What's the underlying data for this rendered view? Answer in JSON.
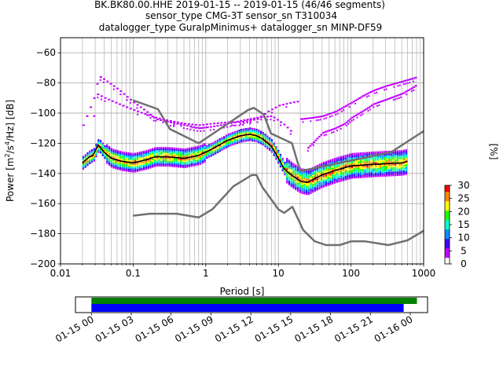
{
  "chart_data": [
    {
      "type": "heatmap",
      "title_lines": [
        "BK.BK80.00.HHE   2019-01-15 -- 2019-01-15  (46/46 segments)",
        "sensor_type CMG-3T sensor_sn T310034",
        "datalogger_type GuralpMinimus+ datalogger_sn MINP-DF59"
      ],
      "xlabel": "Period [s]",
      "ylabel_parts": {
        "prefix": "Power [m",
        "sup1": "2",
        "mid": "/s",
        "sup2": "4",
        "suffix": "/Hz] [dB]"
      },
      "x_scale": "log",
      "xlim": [
        0.01,
        1000
      ],
      "ylim": [
        -200,
        -50
      ],
      "x_ticks": [
        {
          "value": 0.01,
          "label": "0.01"
        },
        {
          "value": 0.1,
          "label": "0.1"
        },
        {
          "value": 1,
          "label": "1"
        },
        {
          "value": 10,
          "label": "10"
        },
        {
          "value": 100,
          "label": "100"
        },
        {
          "value": 1000,
          "label": "1000"
        }
      ],
      "y_ticks": [
        {
          "value": -60,
          "label": "−60"
        },
        {
          "value": -80,
          "label": "−80"
        },
        {
          "value": -100,
          "label": "−100"
        },
        {
          "value": -120,
          "label": "−120"
        },
        {
          "value": -140,
          "label": "−140"
        },
        {
          "value": -160,
          "label": "−160"
        },
        {
          "value": -180,
          "label": "−180"
        },
        {
          "value": -200,
          "label": "−200"
        }
      ],
      "grid": true,
      "noise_model_color": "#707070",
      "new_high_noise_model": {
        "period": [
          0.1,
          0.22,
          0.32,
          0.8,
          3.8,
          4.6,
          6.3,
          7.9,
          15.4,
          20,
          354.8,
          1000
        ],
        "power": [
          -91.5,
          -97.4,
          -110.5,
          -120.0,
          -98.0,
          -96.5,
          -101.0,
          -113.5,
          -120.0,
          -138.5,
          -126.0,
          -112.0
        ]
      },
      "new_low_noise_model": {
        "period": [
          0.1,
          0.17,
          0.4,
          0.8,
          1.24,
          2.4,
          4.3,
          5.0,
          6.0,
          10.0,
          12.0,
          15.6,
          21.9,
          31.6,
          45,
          70,
          101,
          154,
          328,
          600,
          1000
        ],
        "power": [
          -168.0,
          -166.7,
          -166.7,
          -169.2,
          -163.7,
          -148.6,
          -141.1,
          -141.1,
          -149.0,
          -163.8,
          -166.2,
          -162.1,
          -177.5,
          -185.0,
          -187.5,
          -187.5,
          -185.0,
          -185.0,
          -187.5,
          -184.4,
          -178.0
        ]
      },
      "mode_line": {
        "color": "#000000",
        "period": [
          0.02,
          0.025,
          0.028,
          0.033,
          0.04,
          0.05,
          0.07,
          0.1,
          0.15,
          0.2,
          0.3,
          0.5,
          0.8,
          1.2,
          2,
          3,
          4,
          5,
          6,
          8,
          10,
          12,
          15,
          20,
          25,
          30,
          40,
          60,
          100,
          200,
          500,
          600
        ],
        "power": [
          -133,
          -129,
          -128,
          -121,
          -126,
          -130,
          -132,
          -133,
          -131,
          -129,
          -129,
          -130,
          -128,
          -124,
          -118,
          -115,
          -114,
          -115,
          -117,
          -122,
          -130,
          -137,
          -141,
          -145,
          -146,
          -144,
          -141,
          -138,
          -135,
          -134,
          -133,
          -132
        ]
      },
      "bimodal_branches": [
        {
          "period": [
            0.02,
            0.03,
            0.04,
            0.05,
            0.07,
            0.1,
            0.15,
            0.2,
            0.3,
            0.5,
            0.8,
            1.2,
            2,
            3,
            5,
            7,
            10,
            15,
            20
          ],
          "power": [
            -108,
            -87,
            -90,
            -92,
            -95,
            -98,
            -101,
            -103,
            -105,
            -107,
            -108,
            -107,
            -106,
            -106,
            -104,
            -99,
            -95,
            -93,
            -92
          ]
        },
        {
          "period": [
            0.028,
            0.032,
            0.04,
            0.06,
            0.1,
            0.15,
            0.2,
            0.3,
            0.5,
            0.8,
            1.2,
            2,
            3,
            5,
            8,
            12,
            16
          ],
          "power": [
            -102,
            -75,
            -78,
            -84,
            -93,
            -99,
            -104,
            -106,
            -108,
            -110,
            -109,
            -107,
            -105,
            -103,
            -102,
            -108,
            -114
          ]
        },
        {
          "period": [
            20,
            30,
            40,
            60,
            100,
            150,
            200,
            300,
            500,
            700,
            800
          ],
          "power": [
            -104,
            -103,
            -102,
            -99,
            -93,
            -88,
            -85,
            -82,
            -79,
            -77,
            -76
          ]
        },
        {
          "period": [
            25,
            40,
            60,
            80,
            100,
            150,
            200,
            300,
            500,
            700,
            800
          ],
          "power": [
            -123,
            -113,
            -110,
            -107,
            -103,
            -98,
            -94,
            -91,
            -87,
            -83,
            -81
          ]
        }
      ],
      "colorbar": {
        "label": "[%]",
        "min": 0,
        "max": 30,
        "ticks": [
          {
            "value": 0,
            "label": "0"
          },
          {
            "value": 5,
            "label": "5"
          },
          {
            "value": 10,
            "label": "10"
          },
          {
            "value": 15,
            "label": "15"
          },
          {
            "value": 20,
            "label": "20"
          },
          {
            "value": 25,
            "label": "25"
          },
          {
            "value": 30,
            "label": "30"
          }
        ],
        "colors": [
          "#ffffff",
          "#c300ff",
          "#4200ff",
          "#0091ff",
          "#00ffcc",
          "#22ff00",
          "#ffff00",
          "#ff8800",
          "#ff0000"
        ]
      }
    },
    {
      "type": "timeline",
      "x_ticks": [
        {
          "label": "01-15 00",
          "hours": 0
        },
        {
          "label": "01-15 03",
          "hours": 3
        },
        {
          "label": "01-15 06",
          "hours": 6
        },
        {
          "label": "01-15 09",
          "hours": 9
        },
        {
          "label": "01-15 12",
          "hours": 12
        },
        {
          "label": "01-15 15",
          "hours": 15
        },
        {
          "label": "01-15 18",
          "hours": 18
        },
        {
          "label": "01-15 21",
          "hours": 21
        },
        {
          "label": "01-16 00",
          "hours": 24
        }
      ],
      "xlim_hours": [
        -1.2,
        25.3
      ],
      "bars": [
        {
          "name": "data",
          "color": "#008000",
          "start_hours": 0,
          "end_hours": 24.5
        },
        {
          "name": "psd",
          "color": "#0000ff",
          "start_hours": 0,
          "end_hours": 23.5
        }
      ]
    }
  ]
}
